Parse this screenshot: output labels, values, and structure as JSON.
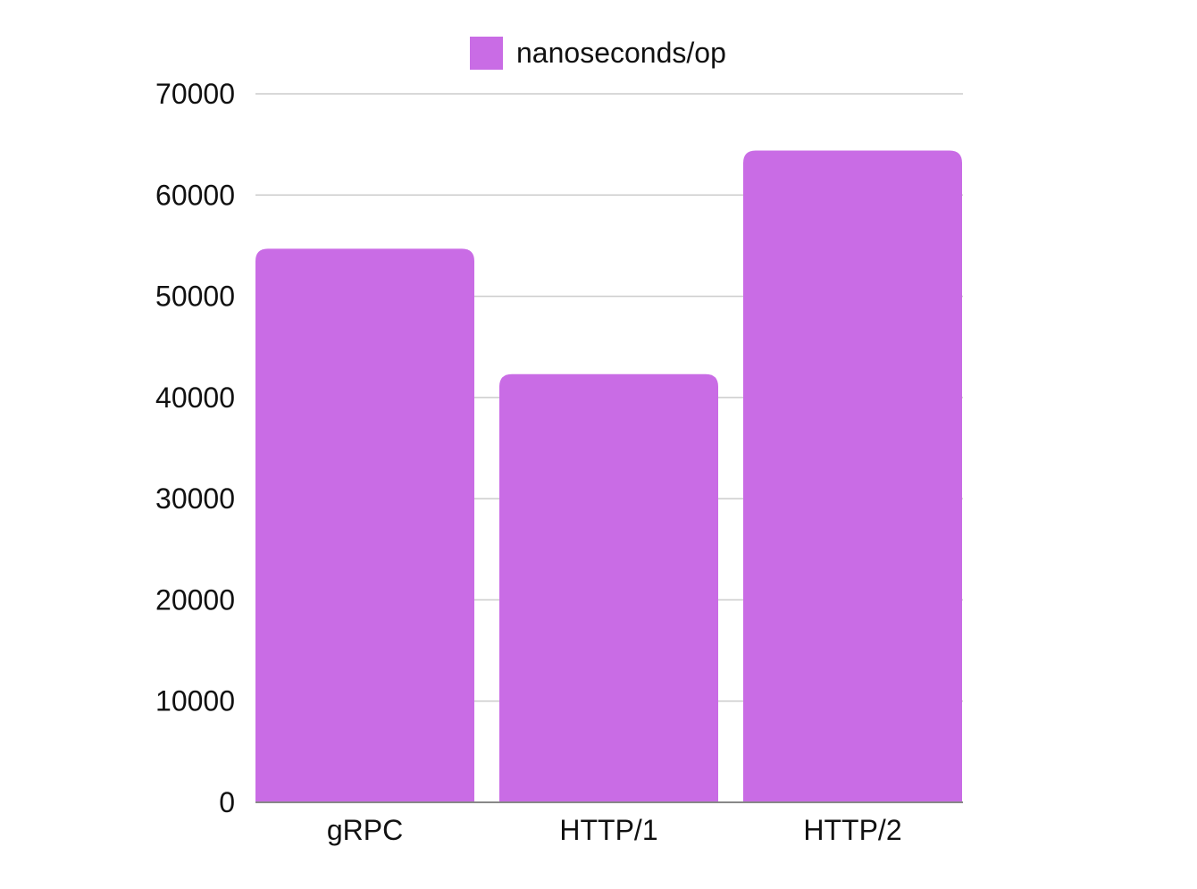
{
  "chart_data": {
    "type": "bar",
    "categories": [
      "gRPC",
      "HTTP/1",
      "HTTP/2"
    ],
    "series": [
      {
        "name": "nanoseconds/op",
        "values": [
          54700,
          42300,
          64400
        ],
        "color": "#c96ce5"
      }
    ],
    "ylim": [
      0,
      70000
    ],
    "yticks": [
      0,
      10000,
      20000,
      30000,
      40000,
      50000,
      60000,
      70000
    ],
    "ytick_labels": [
      "0",
      "10000",
      "20000",
      "30000",
      "40000",
      "50000",
      "60000",
      "70000"
    ],
    "grid": true,
    "legend_position": "top-center",
    "grid_color": "#cccccc",
    "axis_color": "#888888"
  }
}
